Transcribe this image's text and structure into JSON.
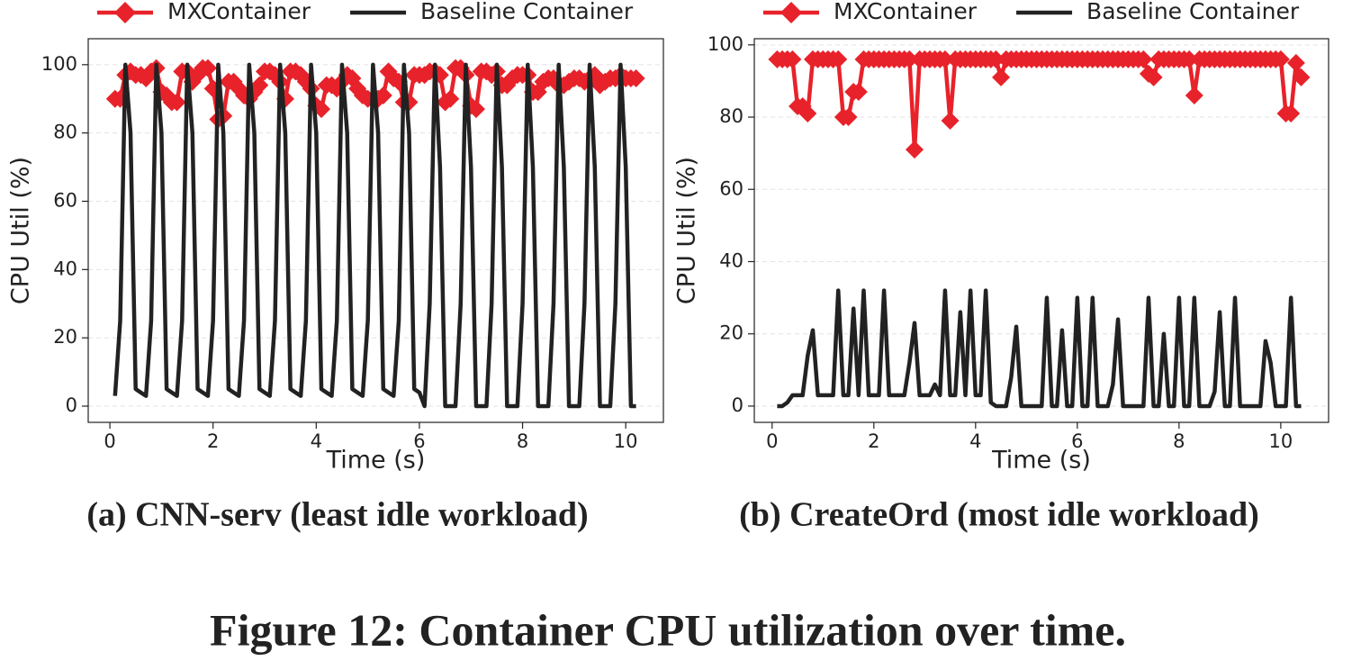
{
  "figure_caption": "Figure 12: Container CPU utilization over time.",
  "chart_data": [
    {
      "type": "line",
      "subtitle": "(a) CNN-serv (least idle workload)",
      "xlabel": "Time (s)",
      "ylabel": "CPU Util (%)",
      "legend": "top",
      "grid": true,
      "xlim": [
        -0.42,
        10.73
      ],
      "ylim": [
        -4.75,
        107.6
      ],
      "xticks": [
        0,
        2,
        4,
        6,
        8,
        10
      ],
      "yticks": [
        0,
        20,
        40,
        60,
        80,
        100
      ],
      "x": [
        0.1,
        0.2,
        0.3,
        0.4,
        0.5,
        0.6,
        0.7,
        0.8,
        0.9,
        1.0,
        1.1,
        1.2,
        1.3,
        1.4,
        1.5,
        1.6,
        1.7,
        1.8,
        1.9,
        2.0,
        2.1,
        2.2,
        2.3,
        2.4,
        2.5,
        2.6,
        2.7,
        2.8,
        2.9,
        3.0,
        3.1,
        3.2,
        3.3,
        3.4,
        3.5,
        3.6,
        3.7,
        3.8,
        3.9,
        4.0,
        4.1,
        4.2,
        4.3,
        4.4,
        4.5,
        4.6,
        4.7,
        4.8,
        4.9,
        5.0,
        5.1,
        5.2,
        5.3,
        5.4,
        5.5,
        5.6,
        5.7,
        5.8,
        5.9,
        6.0,
        6.1,
        6.2,
        6.3,
        6.4,
        6.5,
        6.6,
        6.7,
        6.8,
        6.9,
        7.0,
        7.1,
        7.2,
        7.3,
        7.4,
        7.5,
        7.6,
        7.7,
        7.8,
        7.9,
        8.0,
        8.1,
        8.2,
        8.3,
        8.4,
        8.5,
        8.6,
        8.7,
        8.8,
        8.9,
        9.0,
        9.1,
        9.2,
        9.3,
        9.4,
        9.5,
        9.6,
        9.7,
        9.8,
        9.9,
        10.0,
        10.1,
        10.2
      ],
      "series": [
        {
          "name": "MXContainer",
          "color": "#e8222a",
          "marker": "diamond",
          "values": [
            90,
            90,
            97,
            98,
            97,
            97,
            96,
            98,
            99,
            92,
            91,
            89,
            89,
            98,
            98,
            95,
            97,
            99,
            99,
            93,
            84,
            85,
            95,
            95,
            93,
            91,
            90,
            92,
            94,
            98,
            98,
            97,
            95,
            90,
            98,
            98,
            97,
            95,
            93,
            88,
            87,
            94,
            94,
            93,
            95,
            97,
            96,
            93,
            91,
            90,
            90,
            90,
            91,
            98,
            96,
            95,
            89,
            89,
            97,
            97,
            97,
            98,
            98,
            97,
            89,
            90,
            99,
            99,
            97,
            88,
            87,
            98,
            98,
            97,
            98,
            94,
            94,
            96,
            97,
            97,
            97,
            92,
            92,
            95,
            96,
            96,
            94,
            94,
            95,
            96,
            96,
            95,
            96,
            97,
            94,
            95,
            96,
            96,
            97,
            96,
            96,
            96
          ]
        },
        {
          "name": "Baseline Container",
          "color": "#222222",
          "values": [
            3,
            25,
            100,
            80,
            5,
            4,
            3,
            25,
            100,
            80,
            5,
            4,
            3,
            25,
            100,
            80,
            5,
            4,
            3,
            25,
            100,
            80,
            5,
            4,
            3,
            25,
            100,
            80,
            5,
            4,
            3,
            25,
            100,
            80,
            5,
            4,
            3,
            25,
            100,
            80,
            5,
            4,
            3,
            25,
            100,
            80,
            5,
            4,
            3,
            25,
            100,
            80,
            5,
            4,
            3,
            25,
            100,
            80,
            5,
            4,
            0,
            30,
            100,
            70,
            0,
            0,
            0,
            30,
            100,
            70,
            0,
            0,
            0,
            30,
            100,
            70,
            0,
            0,
            0,
            30,
            100,
            70,
            0,
            0,
            0,
            30,
            100,
            70,
            0,
            0,
            0,
            30,
            100,
            70,
            0,
            0,
            0,
            30,
            100,
            70,
            0,
            0
          ]
        }
      ]
    },
    {
      "type": "line",
      "subtitle": "(b) CreateOrd (most idle workload)",
      "xlabel": "Time (s)",
      "ylabel": "CPU Util (%)",
      "legend": "top",
      "grid": true,
      "xlim": [
        -0.35,
        10.94
      ],
      "ylim": [
        -4.5,
        101.7
      ],
      "xticks": [
        0,
        2,
        4,
        6,
        8,
        10
      ],
      "yticks": [
        0,
        20,
        40,
        60,
        80,
        100
      ],
      "x": [
        0.1,
        0.2,
        0.3,
        0.4,
        0.5,
        0.6,
        0.7,
        0.8,
        0.9,
        1.0,
        1.1,
        1.2,
        1.3,
        1.4,
        1.5,
        1.6,
        1.7,
        1.8,
        1.9,
        2.0,
        2.1,
        2.2,
        2.3,
        2.4,
        2.5,
        2.6,
        2.7,
        2.8,
        2.9,
        3.0,
        3.1,
        3.2,
        3.3,
        3.4,
        3.5,
        3.6,
        3.7,
        3.8,
        3.9,
        4.0,
        4.1,
        4.2,
        4.3,
        4.4,
        4.5,
        4.6,
        4.7,
        4.8,
        4.9,
        5.0,
        5.1,
        5.2,
        5.3,
        5.4,
        5.5,
        5.6,
        5.7,
        5.8,
        5.9,
        6.0,
        6.1,
        6.2,
        6.3,
        6.4,
        6.5,
        6.6,
        6.7,
        6.8,
        6.9,
        7.0,
        7.1,
        7.2,
        7.3,
        7.4,
        7.5,
        7.6,
        7.7,
        7.8,
        7.9,
        8.0,
        8.1,
        8.2,
        8.3,
        8.4,
        8.5,
        8.6,
        8.7,
        8.8,
        8.9,
        9.0,
        9.1,
        9.2,
        9.3,
        9.4,
        9.5,
        9.6,
        9.7,
        9.8,
        9.9,
        10.0,
        10.1,
        10.2,
        10.3,
        10.4
      ],
      "series": [
        {
          "name": "MXContainer",
          "color": "#e8222a",
          "marker": "diamond",
          "values": [
            96,
            96,
            96,
            96,
            83,
            83,
            81,
            96,
            96,
            96,
            96,
            96,
            96,
            80,
            80,
            87,
            87,
            96,
            96,
            96,
            96,
            96,
            96,
            96,
            96,
            96,
            96,
            71,
            96,
            96,
            96,
            96,
            96,
            96,
            79,
            96,
            96,
            96,
            96,
            96,
            96,
            96,
            96,
            96,
            91,
            96,
            96,
            96,
            96,
            96,
            96,
            96,
            96,
            96,
            96,
            96,
            96,
            96,
            96,
            96,
            96,
            96,
            96,
            96,
            96,
            96,
            96,
            96,
            96,
            96,
            96,
            96,
            96,
            92,
            91,
            96,
            96,
            96,
            96,
            96,
            96,
            96,
            86,
            96,
            96,
            96,
            96,
            96,
            96,
            96,
            96,
            96,
            96,
            96,
            96,
            96,
            96,
            96,
            96,
            96,
            81,
            81,
            95,
            91
          ]
        },
        {
          "name": "Baseline Container",
          "color": "#222222",
          "values": [
            0,
            0,
            1,
            3,
            3,
            3,
            14,
            21,
            3,
            3,
            3,
            3,
            32,
            3,
            3,
            27,
            3,
            32,
            3,
            3,
            3,
            32,
            3,
            3,
            3,
            3,
            12,
            23,
            3,
            3,
            3,
            6,
            3,
            32,
            3,
            3,
            26,
            3,
            32,
            3,
            3,
            32,
            1,
            0,
            0,
            0,
            8,
            22,
            0,
            0,
            0,
            0,
            0,
            30,
            0,
            0,
            21,
            0,
            0,
            30,
            0,
            0,
            30,
            0,
            0,
            0,
            6,
            24,
            0,
            0,
            0,
            0,
            0,
            30,
            0,
            0,
            20,
            0,
            0,
            30,
            0,
            0,
            30,
            0,
            0,
            0,
            4,
            26,
            0,
            0,
            30,
            0,
            0,
            0,
            0,
            0,
            18,
            12,
            0,
            0,
            0,
            30,
            0,
            0
          ]
        }
      ]
    }
  ]
}
